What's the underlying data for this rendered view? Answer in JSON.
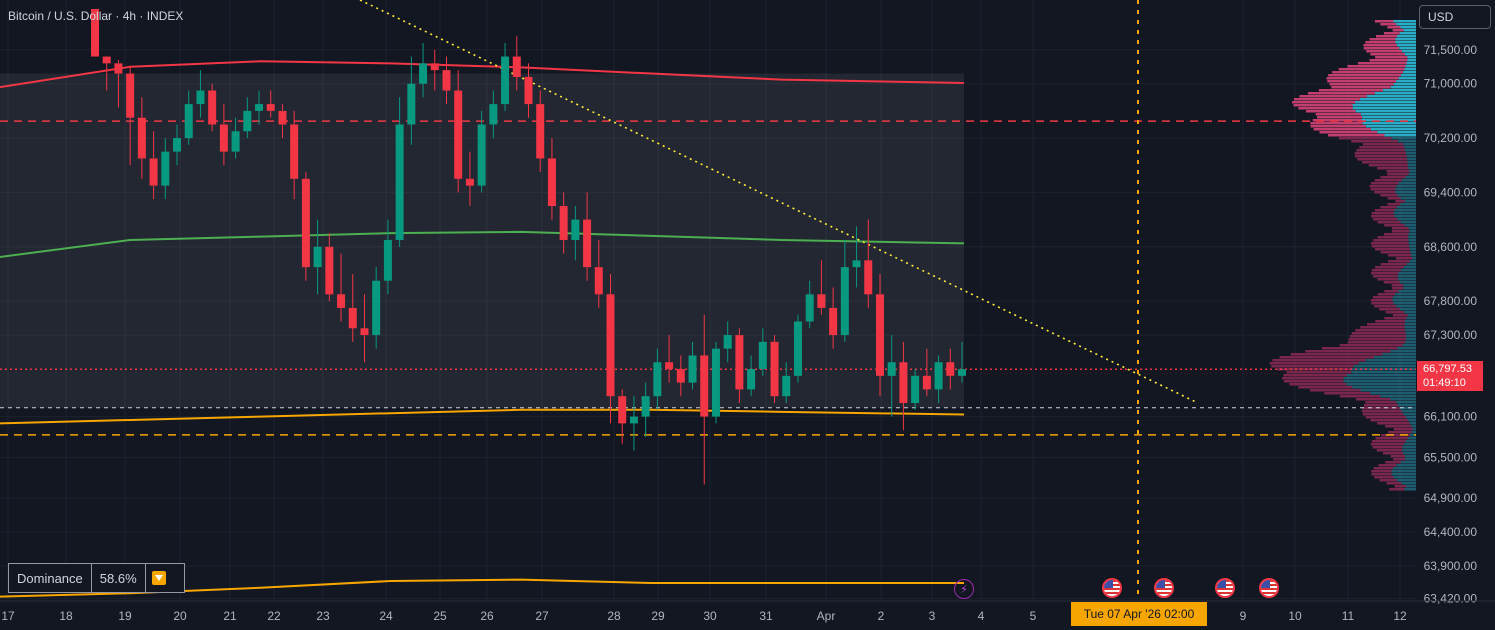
{
  "legend": {
    "title": "Bitcoin / U.S. Dollar · 4h · INDEX"
  },
  "toolbar": {
    "currency": "USD"
  },
  "indicator": {
    "name": "Dominance",
    "value": "58.6%",
    "icon": "arrow-down-icon"
  },
  "crosshair": {
    "date_label": "Tue 07 Apr '26   02:00"
  },
  "last_price": {
    "price": "66,797.53",
    "countdown": "01:49:10"
  },
  "colors": {
    "background": "#131722",
    "up": "#089981",
    "down": "#f23645",
    "sma_green": "#4caf50",
    "band_red": "#f23645",
    "band_orange": "#f7a600",
    "trend": "#ffeb3b",
    "vp_up": "#2ab4cf",
    "vp_down": "#8e2a55"
  },
  "price_axis": {
    "ticks": [
      "71,500.00",
      "71,000.00",
      "70,200.00",
      "69,400.00",
      "68,600.00",
      "67,800.00",
      "67,300.00",
      "66,100.00",
      "65,500.00",
      "64,900.00",
      "64,400.00",
      "63,900.00",
      "63,420.00"
    ]
  },
  "time_axis": {
    "ticks": [
      "17",
      "18",
      "19",
      "20",
      "21",
      "22",
      "23",
      "24",
      "25",
      "26",
      "27",
      "28",
      "29",
      "30",
      "31",
      "Apr",
      "2",
      "3",
      "4",
      "5",
      "9",
      "10",
      "11",
      "12"
    ]
  },
  "chart_data": {
    "type": "candlestick",
    "interval": "4h",
    "ylim": [
      63400,
      72100
    ],
    "days": [
      "17",
      "18",
      "19",
      "20",
      "21",
      "22",
      "23",
      "24",
      "25",
      "26",
      "27",
      "28",
      "29",
      "30",
      "31",
      "Apr",
      "2",
      "3"
    ],
    "hlines": [
      {
        "price": 70450,
        "color": "#f23645",
        "style": "dashed"
      },
      {
        "price": 65830,
        "color": "#f7a600",
        "style": "dashed"
      },
      {
        "price": 66797.53,
        "color": "#f23645",
        "style": "dotted"
      },
      {
        "price": 66230,
        "color": "#d1d4dc",
        "style": "dashed"
      }
    ],
    "candles": [
      [
        72100,
        72100,
        71400,
        71400
      ],
      [
        71400,
        71400,
        70900,
        71300
      ],
      [
        71300,
        71350,
        70650,
        71150
      ],
      [
        71150,
        71250,
        69800,
        70500
      ],
      [
        70500,
        70800,
        69600,
        69900
      ],
      [
        69900,
        70300,
        69300,
        69500
      ],
      [
        69500,
        70200,
        69300,
        70000
      ],
      [
        70000,
        70400,
        69800,
        70200
      ],
      [
        70200,
        70900,
        70100,
        70700
      ],
      [
        70700,
        71200,
        70500,
        70900
      ],
      [
        70900,
        71000,
        70300,
        70400
      ],
      [
        70400,
        70700,
        69800,
        70000
      ],
      [
        70000,
        70500,
        69900,
        70300
      ],
      [
        70300,
        70800,
        70200,
        70600
      ],
      [
        70600,
        70900,
        70400,
        70700
      ],
      [
        70700,
        70900,
        70500,
        70600
      ],
      [
        70600,
        70700,
        70200,
        70400
      ],
      [
        70400,
        70600,
        69300,
        69600
      ],
      [
        69600,
        69700,
        68100,
        68300
      ],
      [
        68300,
        69000,
        67900,
        68600
      ],
      [
        68600,
        68800,
        67800,
        67900
      ],
      [
        67900,
        68500,
        67500,
        67700
      ],
      [
        67700,
        68200,
        67200,
        67400
      ],
      [
        67400,
        67900,
        66900,
        67300
      ],
      [
        67300,
        68300,
        67100,
        68100
      ],
      [
        68100,
        69000,
        67900,
        68700
      ],
      [
        68700,
        70800,
        68600,
        70400
      ],
      [
        70400,
        71400,
        70100,
        71000
      ],
      [
        71000,
        71600,
        70800,
        71300
      ],
      [
        71300,
        71500,
        70900,
        71200
      ],
      [
        71200,
        71400,
        70700,
        70900
      ],
      [
        70900,
        71200,
        69400,
        69600
      ],
      [
        69600,
        70000,
        69200,
        69500
      ],
      [
        69500,
        70600,
        69400,
        70400
      ],
      [
        70400,
        70900,
        70200,
        70700
      ],
      [
        70700,
        71600,
        70600,
        71400
      ],
      [
        71400,
        71700,
        70900,
        71100
      ],
      [
        71100,
        71300,
        70500,
        70700
      ],
      [
        70700,
        70900,
        69700,
        69900
      ],
      [
        69900,
        70200,
        69000,
        69200
      ],
      [
        69200,
        69400,
        68500,
        68700
      ],
      [
        68700,
        69200,
        68400,
        69000
      ],
      [
        69000,
        69400,
        68100,
        68300
      ],
      [
        68300,
        68700,
        67700,
        67900
      ],
      [
        67900,
        68200,
        66000,
        66400
      ],
      [
        66400,
        66500,
        65700,
        66000
      ],
      [
        66000,
        66400,
        65600,
        66100
      ],
      [
        66100,
        66600,
        65800,
        66400
      ],
      [
        66400,
        67100,
        66200,
        66900
      ],
      [
        66900,
        67300,
        66600,
        66800
      ],
      [
        66800,
        67000,
        66400,
        66600
      ],
      [
        66600,
        67200,
        66500,
        67000
      ],
      [
        67000,
        67600,
        65100,
        66100
      ],
      [
        66100,
        67200,
        66000,
        67100
      ],
      [
        67100,
        67500,
        66900,
        67300
      ],
      [
        67300,
        67400,
        66300,
        66500
      ],
      [
        66500,
        67000,
        66400,
        66800
      ],
      [
        66800,
        67400,
        66700,
        67200
      ],
      [
        67200,
        67300,
        66300,
        66400
      ],
      [
        66400,
        66900,
        66300,
        66700
      ],
      [
        66700,
        67600,
        66600,
        67500
      ],
      [
        67500,
        68100,
        67400,
        67900
      ],
      [
        67900,
        68400,
        67600,
        67700
      ],
      [
        67700,
        68000,
        67100,
        67300
      ],
      [
        67300,
        68700,
        67200,
        68300
      ],
      [
        68300,
        68900,
        68000,
        68400
      ],
      [
        68400,
        69000,
        67700,
        67900
      ],
      [
        67900,
        68200,
        66400,
        66700
      ],
      [
        66700,
        67300,
        66100,
        66900
      ],
      [
        66900,
        67200,
        65900,
        66300
      ],
      [
        66300,
        66800,
        66200,
        66700
      ],
      [
        66700,
        67100,
        66400,
        66500
      ],
      [
        66500,
        67000,
        66300,
        66900
      ],
      [
        66900,
        67100,
        66500,
        66700
      ],
      [
        66700,
        67200,
        66600,
        66797.53
      ]
    ],
    "series": [
      {
        "name": "",
        "color": "#f23645",
        "points": [
          [
            0,
            70950
          ],
          [
            10,
            71250
          ],
          [
            20,
            71330
          ],
          [
            30,
            71300
          ],
          [
            40,
            71240
          ],
          [
            50,
            71150
          ],
          [
            60,
            71060
          ],
          [
            74,
            71010
          ]
        ]
      },
      {
        "name": "",
        "color": "#4caf50",
        "points": [
          [
            0,
            68450
          ],
          [
            10,
            68700
          ],
          [
            20,
            68750
          ],
          [
            30,
            68800
          ],
          [
            40,
            68820
          ],
          [
            50,
            68760
          ],
          [
            60,
            68700
          ],
          [
            74,
            68650
          ]
        ]
      },
      {
        "name": "",
        "color": "#f7a600",
        "points": [
          [
            0,
            66000
          ],
          [
            10,
            66050
          ],
          [
            20,
            66100
          ],
          [
            30,
            66150
          ],
          [
            40,
            66200
          ],
          [
            50,
            66200
          ],
          [
            60,
            66170
          ],
          [
            74,
            66130
          ]
        ]
      },
      {
        "name": "",
        "color": "#f7a600",
        "points": [
          [
            0,
            63450
          ],
          [
            10,
            63500
          ],
          [
            20,
            63580
          ],
          [
            30,
            63680
          ],
          [
            40,
            63700
          ],
          [
            50,
            63650
          ],
          [
            60,
            63650
          ],
          [
            74,
            63650
          ]
        ]
      }
    ]
  }
}
